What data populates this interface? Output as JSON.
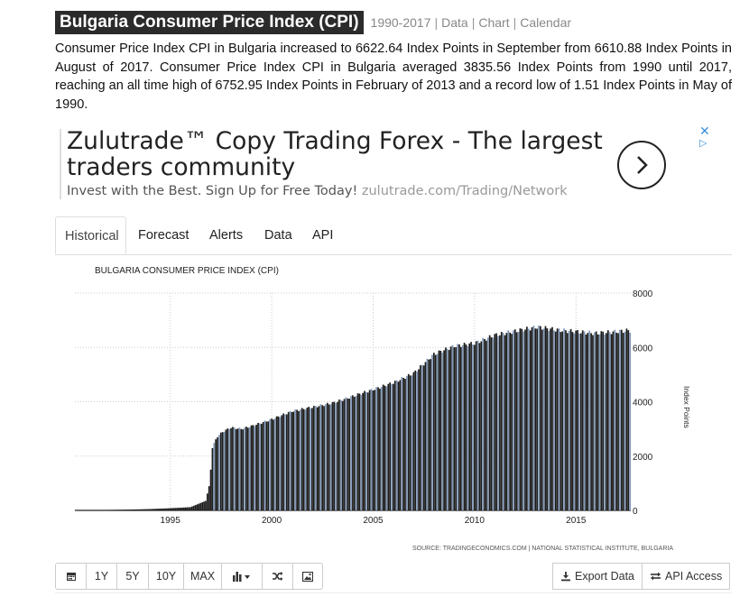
{
  "header": {
    "title": "Bulgaria Consumer Price Index (CPI)",
    "years": "1990-2017",
    "links": [
      "Data",
      "Chart",
      "Calendar"
    ]
  },
  "description": "Consumer Price Index CPI in Bulgaria increased to 6622.64 Index Points in September from 6610.88 Index Points in August of 2017. Consumer Price Index CPI in Bulgaria averaged 3835.56 Index Points from 1990 until 2017, reaching an all time high of 6752.95 Index Points in February of 2013 and a record low of 1.51 Index Points in May of 1990.",
  "ad": {
    "headline": "Zulutrade™ Copy Trading Forex - The largest traders community",
    "subline": "Invest with the Best. Sign Up for Free Today!",
    "url": "zulutrade.com/Trading/Network",
    "close_icon": "close-icon",
    "info_icon": "ad-choices-icon"
  },
  "tabs": [
    "Historical",
    "Forecast",
    "Alerts",
    "Data",
    "API"
  ],
  "active_tab": "Historical",
  "chart_data": {
    "type": "bar",
    "title": "BULGARIA CONSUMER PRICE INDEX (CPI)",
    "ylabel": "Index Points",
    "xlabel": "",
    "source": "SOURCE: TRADINGECONOMICS.COM | NATIONAL STATISTICAL INSTITUTE, BULGARIA",
    "xlim": [
      1990.3,
      2017.7
    ],
    "ylim": [
      0,
      8000
    ],
    "x_ticks": [
      1995,
      2000,
      2005,
      2010,
      2015
    ],
    "y_ticks": [
      0,
      2000,
      4000,
      6000,
      8000
    ],
    "grid": true,
    "colors": {
      "bar": "#1c1c1c",
      "bar_alt": "#7f96b5",
      "grid": "#cccccc"
    },
    "anchors": [
      [
        1990.42,
        1.51
      ],
      [
        1991.0,
        6
      ],
      [
        1992.0,
        18
      ],
      [
        1993.0,
        30
      ],
      [
        1994.0,
        50
      ],
      [
        1995.0,
        80
      ],
      [
        1996.0,
        120
      ],
      [
        1996.75,
        350
      ],
      [
        1996.95,
        1000
      ],
      [
        1997.08,
        2300
      ],
      [
        1997.3,
        2700
      ],
      [
        1997.6,
        2900
      ],
      [
        1998.0,
        3050
      ],
      [
        1998.5,
        3000
      ],
      [
        1999.0,
        3100
      ],
      [
        2000.0,
        3350
      ],
      [
        2001.0,
        3650
      ],
      [
        2002.0,
        3800
      ],
      [
        2003.0,
        3950
      ],
      [
        2004.0,
        4200
      ],
      [
        2005.0,
        4450
      ],
      [
        2006.0,
        4700
      ],
      [
        2007.0,
        5050
      ],
      [
        2008.0,
        5750
      ],
      [
        2009.0,
        6050
      ],
      [
        2010.0,
        6150
      ],
      [
        2011.0,
        6450
      ],
      [
        2012.0,
        6600
      ],
      [
        2013.1,
        6752.95
      ],
      [
        2014.0,
        6650
      ],
      [
        2015.0,
        6580
      ],
      [
        2016.0,
        6520
      ],
      [
        2017.0,
        6580
      ],
      [
        2017.58,
        6622.64
      ]
    ]
  },
  "toolbar": {
    "buttons": [
      "1Y",
      "5Y",
      "10Y",
      "MAX"
    ],
    "icons": [
      "calendar-icon",
      "bar-chart-icon",
      "shuffle-icon",
      "image-icon"
    ],
    "export_label": "Export Data",
    "api_label": "API Access"
  }
}
